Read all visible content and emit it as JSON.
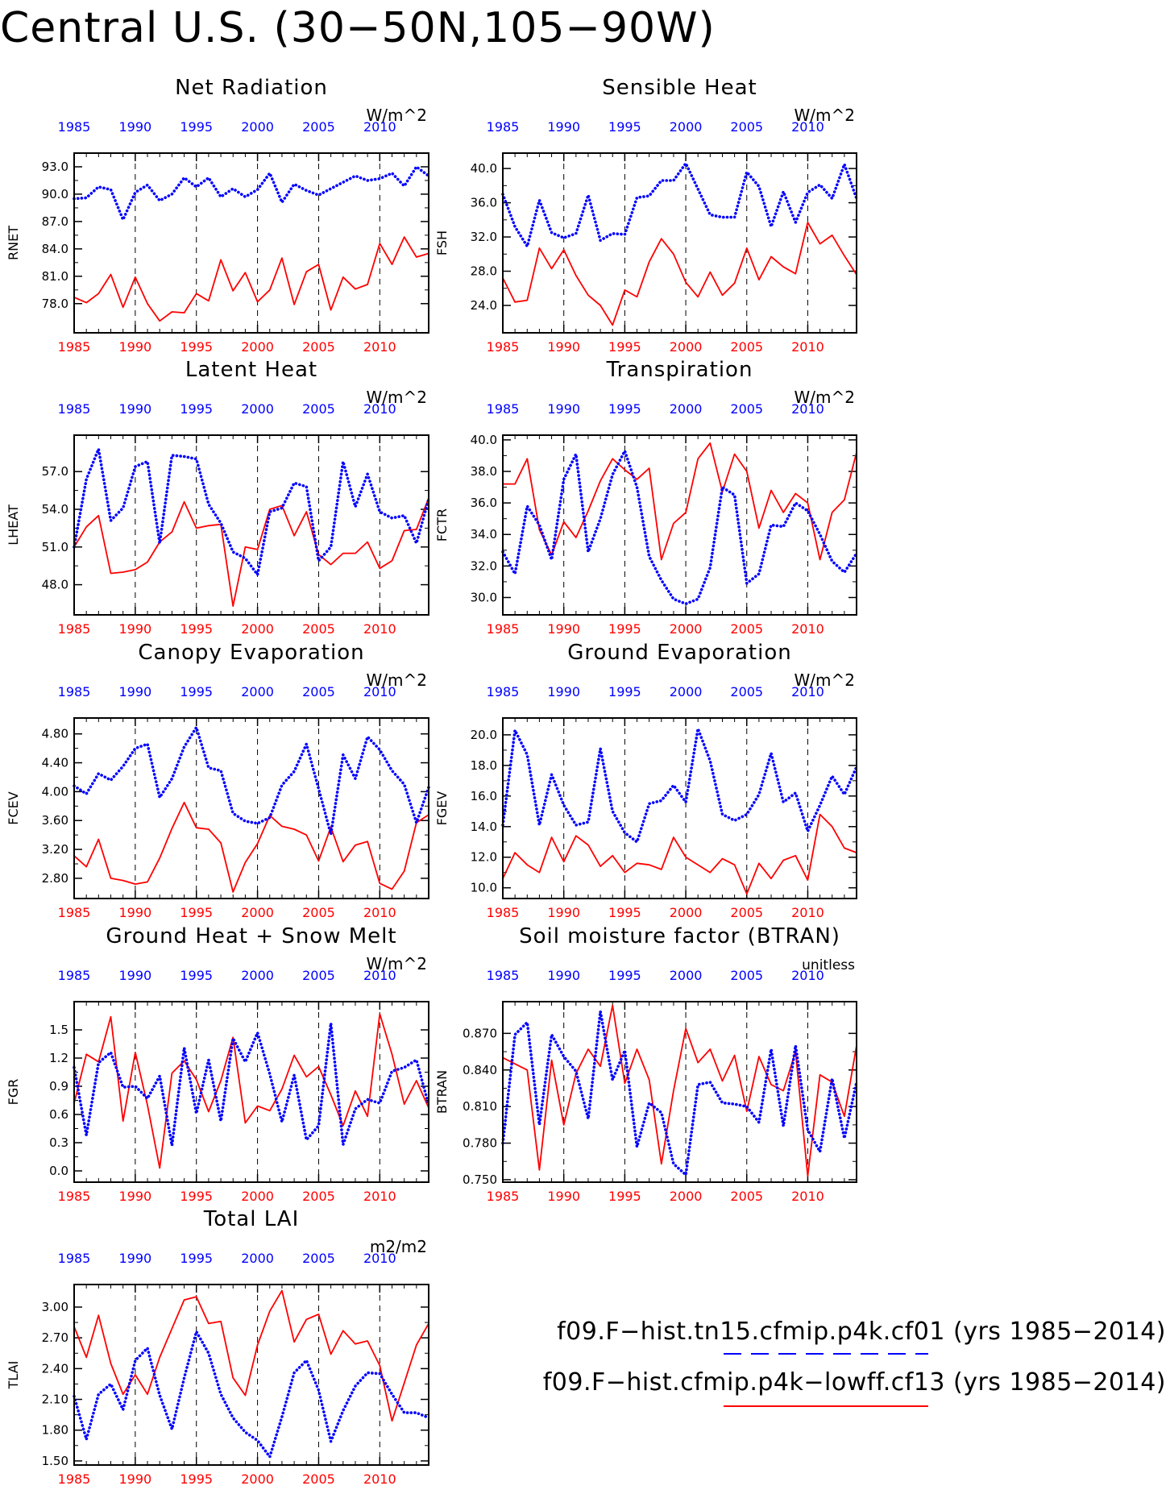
{
  "title": "Central U.S. (30−50N,105−90W)",
  "year_axis_ticks": [
    "1985",
    "1990",
    "1995",
    "2000",
    "2005",
    "2010"
  ],
  "legend": [
    {
      "label": "f09.F−hist.tn15.cfmip.p4k.cf01 (yrs 1985−2014)",
      "color": "#0000ff",
      "style": "dashed"
    },
    {
      "label": "f09.F−hist.cfmip.p4k−lowff.cf13 (yrs 1985−2014)",
      "color": "#ff0000",
      "style": "solid"
    }
  ],
  "chart_data": [
    {
      "type": "line",
      "title": "Net Radiation",
      "ylabel": "RNET",
      "units": "W/m^2",
      "x": [
        1985,
        1986,
        1987,
        1988,
        1989,
        1990,
        1991,
        1992,
        1993,
        1994,
        1995,
        1996,
        1997,
        1998,
        1999,
        2000,
        2001,
        2002,
        2003,
        2004,
        2005,
        2006,
        2007,
        2008,
        2009,
        2010,
        2011,
        2012,
        2013,
        2014
      ],
      "xlim": [
        1985,
        2014
      ],
      "ylim": [
        74.8,
        94.5
      ],
      "yticks": [
        "78.0",
        "81.0",
        "84.0",
        "87.0",
        "90.0",
        "93.0"
      ],
      "series": [
        {
          "color": "#0000ff",
          "style": "dotted",
          "values": [
            89.5,
            89.6,
            90.8,
            90.5,
            87.2,
            90.2,
            91.0,
            89.3,
            90.0,
            91.8,
            90.8,
            91.8,
            89.7,
            90.6,
            89.7,
            90.5,
            92.3,
            89.1,
            91.1,
            90.4,
            89.9,
            90.6,
            91.3,
            92.0,
            91.5,
            91.7,
            92.3,
            90.9,
            93.0,
            92.0
          ]
        },
        {
          "color": "#ff0000",
          "style": "solid",
          "values": [
            78.7,
            78.1,
            79.1,
            81.2,
            77.6,
            80.9,
            78.0,
            76.1,
            77.1,
            77.0,
            79.1,
            78.3,
            82.8,
            79.4,
            81.4,
            78.2,
            79.5,
            83.0,
            77.9,
            81.5,
            82.3,
            77.3,
            80.9,
            79.6,
            80.1,
            84.6,
            82.3,
            85.3,
            83.1,
            83.5
          ]
        }
      ]
    },
    {
      "type": "line",
      "title": "Sensible Heat",
      "ylabel": "FSH",
      "units": "W/m^2",
      "x": [
        1985,
        1986,
        1987,
        1988,
        1989,
        1990,
        1991,
        1992,
        1993,
        1994,
        1995,
        1996,
        1997,
        1998,
        1999,
        2000,
        2001,
        2002,
        2003,
        2004,
        2005,
        2006,
        2007,
        2008,
        2009,
        2010,
        2011,
        2012,
        2013,
        2014
      ],
      "xlim": [
        1985,
        2014
      ],
      "ylim": [
        20.8,
        41.8
      ],
      "yticks": [
        "24.0",
        "28.0",
        "32.0",
        "36.0",
        "40.0"
      ],
      "series": [
        {
          "color": "#0000ff",
          "style": "dotted",
          "values": [
            37.0,
            33.2,
            30.9,
            36.3,
            32.5,
            31.9,
            32.4,
            36.9,
            31.6,
            32.4,
            32.3,
            36.6,
            36.8,
            38.6,
            38.6,
            40.6,
            37.6,
            34.6,
            34.3,
            34.3,
            39.6,
            37.9,
            33.2,
            37.3,
            33.7,
            37.2,
            38.1,
            36.5,
            40.5,
            36.5
          ]
        },
        {
          "color": "#ff0000",
          "style": "solid",
          "values": [
            27.2,
            24.4,
            24.6,
            30.7,
            28.3,
            30.5,
            27.5,
            25.2,
            24.0,
            21.7,
            25.8,
            25.0,
            29.1,
            31.8,
            30.0,
            26.7,
            25.0,
            27.9,
            25.2,
            26.6,
            30.7,
            27.0,
            29.7,
            28.5,
            27.7,
            33.7,
            31.2,
            32.2,
            29.8,
            27.6
          ]
        }
      ]
    },
    {
      "type": "line",
      "title": "Latent Heat",
      "ylabel": "LHEAT",
      "units": "W/m^2",
      "x": [
        1985,
        1986,
        1987,
        1988,
        1989,
        1990,
        1991,
        1992,
        1993,
        1994,
        1995,
        1996,
        1997,
        1998,
        1999,
        2000,
        2001,
        2002,
        2003,
        2004,
        2005,
        2006,
        2007,
        2008,
        2009,
        2010,
        2011,
        2012,
        2013,
        2014
      ],
      "xlim": [
        1985,
        2014
      ],
      "ylim": [
        45.6,
        59.9
      ],
      "yticks": [
        "48.0",
        "51.0",
        "54.0",
        "57.0"
      ],
      "series": [
        {
          "color": "#0000ff",
          "style": "dotted",
          "values": [
            51.0,
            56.4,
            58.8,
            53.1,
            54.1,
            57.4,
            57.8,
            51.3,
            58.3,
            58.2,
            58.0,
            54.4,
            52.9,
            50.6,
            50.1,
            48.8,
            53.8,
            54.1,
            56.1,
            55.8,
            49.9,
            51.0,
            57.8,
            54.2,
            56.8,
            53.8,
            53.3,
            53.5,
            51.3,
            54.8
          ]
        },
        {
          "color": "#ff0000",
          "style": "solid",
          "values": [
            51.0,
            52.6,
            53.5,
            48.9,
            49.0,
            49.2,
            49.8,
            51.4,
            52.2,
            54.6,
            52.5,
            52.7,
            52.8,
            46.3,
            51.0,
            50.8,
            54.0,
            54.3,
            51.9,
            53.8,
            50.4,
            49.6,
            50.5,
            50.5,
            51.4,
            49.3,
            49.9,
            52.3,
            52.4,
            54.9
          ]
        }
      ]
    },
    {
      "type": "line",
      "title": "Transpiration",
      "ylabel": "FCTR",
      "units": "W/m^2",
      "x": [
        1985,
        1986,
        1987,
        1988,
        1989,
        1990,
        1991,
        1992,
        1993,
        1994,
        1995,
        1996,
        1997,
        1998,
        1999,
        2000,
        2001,
        2002,
        2003,
        2004,
        2005,
        2006,
        2007,
        2008,
        2009,
        2010,
        2011,
        2012,
        2013,
        2014
      ],
      "xlim": [
        1985,
        2014
      ],
      "ylim": [
        28.9,
        40.3
      ],
      "yticks": [
        "30.0",
        "32.0",
        "34.0",
        "36.0",
        "38.0",
        "40.0"
      ],
      "series": [
        {
          "color": "#0000ff",
          "style": "dotted",
          "values": [
            32.9,
            31.5,
            35.8,
            34.6,
            32.4,
            37.5,
            39.1,
            32.9,
            35.0,
            37.8,
            39.3,
            37.0,
            32.6,
            31.1,
            29.9,
            29.6,
            29.9,
            31.9,
            37.0,
            36.5,
            30.9,
            31.5,
            34.6,
            34.5,
            36.0,
            35.5,
            34.0,
            32.3,
            31.6,
            32.8
          ]
        },
        {
          "color": "#ff0000",
          "style": "solid",
          "values": [
            37.2,
            37.2,
            38.8,
            34.3,
            32.7,
            34.8,
            33.8,
            35.5,
            37.4,
            38.8,
            38.1,
            37.5,
            38.2,
            32.4,
            34.7,
            35.4,
            38.8,
            39.8,
            36.7,
            39.1,
            38.0,
            34.4,
            36.8,
            35.4,
            36.6,
            36.0,
            32.4,
            35.4,
            36.2,
            39.2
          ]
        }
      ]
    },
    {
      "type": "line",
      "title": "Canopy Evaporation",
      "ylabel": "FCEV",
      "units": "W/m^2",
      "x": [
        1985,
        1986,
        1987,
        1988,
        1989,
        1990,
        1991,
        1992,
        1993,
        1994,
        1995,
        1996,
        1997,
        1998,
        1999,
        2000,
        2001,
        2002,
        2003,
        2004,
        2005,
        2006,
        2007,
        2008,
        2009,
        2010,
        2011,
        2012,
        2013,
        2014
      ],
      "xlim": [
        1985,
        2014
      ],
      "ylim": [
        2.52,
        5.02
      ],
      "yticks": [
        "2.80",
        "3.20",
        "3.60",
        "4.00",
        "4.40",
        "4.80"
      ],
      "series": [
        {
          "color": "#0000ff",
          "style": "dotted",
          "values": [
            4.08,
            3.97,
            4.25,
            4.16,
            4.35,
            4.6,
            4.66,
            3.92,
            4.18,
            4.62,
            4.89,
            4.33,
            4.29,
            3.7,
            3.59,
            3.56,
            3.64,
            4.09,
            4.28,
            4.66,
            4.04,
            3.41,
            4.51,
            4.18,
            4.76,
            4.58,
            4.29,
            4.1,
            3.57,
            4.06
          ]
        },
        {
          "color": "#ff0000",
          "style": "solid",
          "values": [
            3.11,
            2.96,
            3.34,
            2.8,
            2.77,
            2.72,
            2.75,
            3.08,
            3.49,
            3.85,
            3.5,
            3.48,
            3.29,
            2.61,
            3.02,
            3.28,
            3.67,
            3.52,
            3.48,
            3.4,
            3.04,
            3.51,
            3.03,
            3.26,
            3.31,
            2.73,
            2.65,
            2.9,
            3.57,
            3.68
          ]
        }
      ]
    },
    {
      "type": "line",
      "title": "Ground Evaporation",
      "ylabel": "FGEV",
      "units": "W/m^2",
      "x": [
        1985,
        1986,
        1987,
        1988,
        1989,
        1990,
        1991,
        1992,
        1993,
        1994,
        1995,
        1996,
        1997,
        1998,
        1999,
        2000,
        2001,
        2002,
        2003,
        2004,
        2005,
        2006,
        2007,
        2008,
        2009,
        2010,
        2011,
        2012,
        2013,
        2014
      ],
      "xlim": [
        1985,
        2014
      ],
      "ylim": [
        9.3,
        21.1
      ],
      "yticks": [
        "10.0",
        "12.0",
        "14.0",
        "16.0",
        "18.0",
        "20.0"
      ],
      "series": [
        {
          "color": "#0000ff",
          "style": "dotted",
          "values": [
            14.1,
            20.3,
            18.7,
            14.1,
            17.4,
            15.4,
            14.1,
            14.3,
            19.1,
            15.0,
            13.6,
            13.0,
            15.5,
            15.7,
            16.7,
            15.6,
            20.4,
            18.3,
            14.8,
            14.4,
            14.8,
            16.1,
            18.8,
            15.6,
            16.2,
            13.7,
            15.4,
            17.3,
            16.1,
            17.9
          ]
        },
        {
          "color": "#ff0000",
          "style": "solid",
          "values": [
            10.6,
            12.3,
            11.5,
            11.0,
            13.3,
            11.7,
            13.4,
            12.8,
            11.4,
            12.1,
            11.0,
            11.6,
            11.5,
            11.2,
            13.3,
            12.0,
            11.5,
            11.0,
            11.9,
            11.5,
            9.6,
            11.6,
            10.6,
            11.8,
            12.1,
            10.5,
            14.8,
            14.0,
            12.6,
            12.3
          ]
        }
      ]
    },
    {
      "type": "line",
      "title": "Ground Heat + Snow Melt",
      "ylabel": "FGR",
      "units": "W/m^2",
      "x": [
        1985,
        1986,
        1987,
        1988,
        1989,
        1990,
        1991,
        1992,
        1993,
        1994,
        1995,
        1996,
        1997,
        1998,
        1999,
        2000,
        2001,
        2002,
        2003,
        2004,
        2005,
        2006,
        2007,
        2008,
        2009,
        2010,
        2011,
        2012,
        2013,
        2014
      ],
      "xlim": [
        1985,
        2014
      ],
      "ylim": [
        -0.12,
        1.8
      ],
      "yticks": [
        "0.0",
        "0.3",
        "0.6",
        "0.9",
        "1.2",
        "1.5"
      ],
      "series": [
        {
          "color": "#0000ff",
          "style": "dotted",
          "values": [
            1.1,
            0.38,
            1.15,
            1.26,
            0.89,
            0.9,
            0.77,
            1.01,
            0.27,
            1.31,
            0.61,
            1.18,
            0.53,
            1.41,
            1.16,
            1.47,
            1.03,
            0.52,
            1.02,
            0.33,
            0.48,
            1.57,
            0.28,
            0.66,
            0.76,
            0.72,
            1.06,
            1.1,
            1.18,
            0.7
          ]
        },
        {
          "color": "#ff0000",
          "style": "solid",
          "values": [
            0.72,
            1.24,
            1.16,
            1.64,
            0.53,
            1.26,
            0.7,
            0.03,
            1.04,
            1.17,
            0.97,
            0.63,
            0.96,
            1.42,
            0.51,
            0.69,
            0.64,
            0.87,
            1.23,
            1.0,
            1.11,
            0.81,
            0.48,
            0.85,
            0.58,
            1.67,
            1.24,
            0.71,
            0.96,
            0.67
          ]
        }
      ]
    },
    {
      "type": "line",
      "title": "Soil moisture factor (BTRAN)",
      "ylabel": "BTRAN",
      "units": "unitless",
      "x": [
        1985,
        1986,
        1987,
        1988,
        1989,
        1990,
        1991,
        1992,
        1993,
        1994,
        1995,
        1996,
        1997,
        1998,
        1999,
        2000,
        2001,
        2002,
        2003,
        2004,
        2005,
        2006,
        2007,
        2008,
        2009,
        2010,
        2011,
        2012,
        2013,
        2014
      ],
      "xlim": [
        1985,
        2014
      ],
      "ylim": [
        0.748,
        0.896
      ],
      "yticks": [
        "0.750",
        "0.780",
        "0.810",
        "0.840",
        "0.870"
      ],
      "series": [
        {
          "color": "#0000ff",
          "style": "dotted",
          "values": [
            0.78,
            0.869,
            0.879,
            0.795,
            0.869,
            0.851,
            0.839,
            0.8,
            0.888,
            0.832,
            0.856,
            0.777,
            0.813,
            0.805,
            0.763,
            0.754,
            0.828,
            0.83,
            0.813,
            0.812,
            0.81,
            0.797,
            0.857,
            0.794,
            0.86,
            0.791,
            0.773,
            0.833,
            0.784,
            0.83
          ]
        },
        {
          "color": "#ff0000",
          "style": "solid",
          "values": [
            0.85,
            0.845,
            0.84,
            0.758,
            0.848,
            0.795,
            0.837,
            0.857,
            0.843,
            0.893,
            0.829,
            0.857,
            0.832,
            0.763,
            0.823,
            0.874,
            0.846,
            0.857,
            0.831,
            0.852,
            0.806,
            0.851,
            0.828,
            0.823,
            0.855,
            0.753,
            0.836,
            0.83,
            0.802,
            0.86
          ]
        }
      ]
    },
    {
      "type": "line",
      "title": "Total LAI",
      "ylabel": "TLAI",
      "units": "m2/m2",
      "x": [
        1985,
        1986,
        1987,
        1988,
        1989,
        1990,
        1991,
        1992,
        1993,
        1994,
        1995,
        1996,
        1997,
        1998,
        1999,
        2000,
        2001,
        2002,
        2003,
        2004,
        2005,
        2006,
        2007,
        2008,
        2009,
        2010,
        2011,
        2012,
        2013,
        2014
      ],
      "xlim": [
        1985,
        2014
      ],
      "ylim": [
        1.46,
        3.22
      ],
      "yticks": [
        "1.50",
        "1.80",
        "2.10",
        "2.40",
        "2.70",
        "3.00"
      ],
      "series": [
        {
          "color": "#0000ff",
          "style": "dotted",
          "values": [
            2.13,
            1.71,
            2.15,
            2.25,
            2.0,
            2.48,
            2.6,
            2.14,
            1.81,
            2.31,
            2.76,
            2.55,
            2.15,
            1.92,
            1.78,
            1.7,
            1.54,
            1.93,
            2.36,
            2.48,
            2.19,
            1.69,
            1.99,
            2.23,
            2.36,
            2.35,
            2.15,
            1.97,
            1.97,
            1.92
          ]
        },
        {
          "color": "#ff0000",
          "style": "solid",
          "values": [
            2.81,
            2.51,
            2.92,
            2.45,
            2.15,
            2.34,
            2.15,
            2.51,
            2.79,
            3.07,
            3.1,
            2.84,
            2.86,
            2.31,
            2.14,
            2.63,
            2.96,
            3.16,
            2.66,
            2.88,
            2.93,
            2.54,
            2.77,
            2.64,
            2.67,
            2.43,
            1.89,
            2.26,
            2.63,
            2.84
          ]
        }
      ]
    }
  ]
}
